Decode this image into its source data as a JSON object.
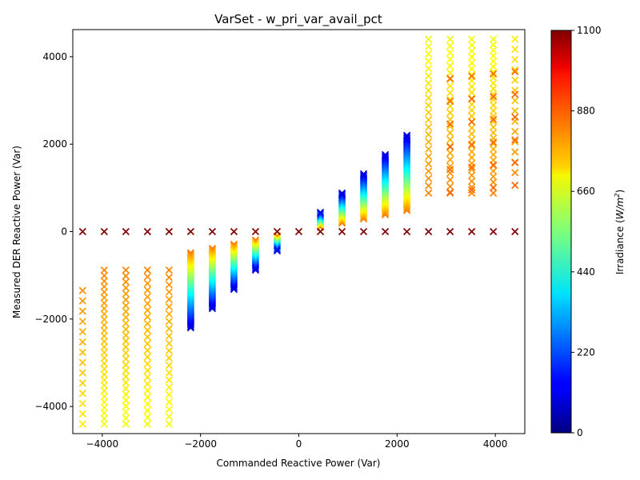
{
  "chart_data": {
    "type": "scatter",
    "title": "VarSet - w_pri_var_avail_pct",
    "xlabel": "Commanded Reactive Power (Var)",
    "ylabel": "Measured DER Reactive Power (Var)",
    "xlim": [
      -4600,
      4600
    ],
    "ylim": [
      -4620,
      4620
    ],
    "xticks": [
      -4000,
      -2000,
      0,
      2000,
      4000
    ],
    "yticks": [
      -4000,
      -2000,
      0,
      2000,
      4000
    ],
    "marker": "x",
    "grid": false,
    "colormap": "jet",
    "colorbar": {
      "label": "Irradiance (W/m²)",
      "label_main": "Irradiance (",
      "label_unit": "W/m",
      "label_sup": "2",
      "label_end": ")",
      "range": [
        0,
        1100
      ],
      "ticks": [
        0,
        220,
        440,
        660,
        880,
        1100
      ]
    },
    "commanded_points": [
      -4400,
      -3960,
      -3520,
      -3080,
      -2640,
      -2200,
      -1760,
      -1320,
      -880,
      -440,
      0,
      440,
      880,
      1320,
      1760,
      2200,
      2640,
      3080,
      3520,
      3960,
      4400
    ],
    "zero_series": {
      "y": 0,
      "irradiance": 1100
    },
    "sweep": {
      "irradiance_min": 100,
      "irradiance_max": 830,
      "q_max": 4400
    }
  }
}
